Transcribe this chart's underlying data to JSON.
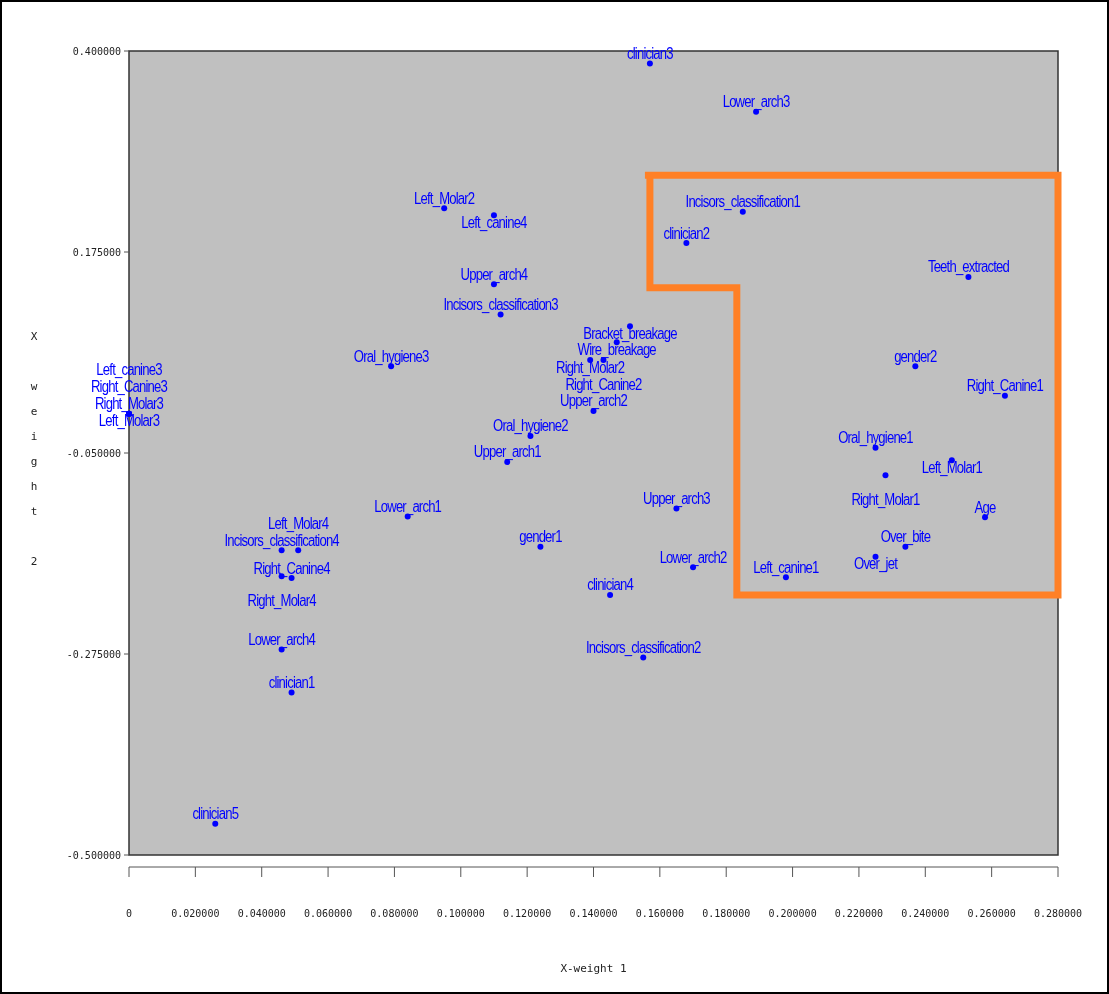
{
  "chart_data": {
    "type": "scatter",
    "xlabel": "X-weight 1",
    "ylabel": "X weight 2",
    "marker": "circle",
    "grid": false,
    "xlim": [
      0,
      0.28
    ],
    "ylim": [
      -0.5,
      0.4
    ],
    "xticks": [
      0,
      {
        "value": 0.02,
        "label": "0.020000"
      },
      {
        "value": 0.04,
        "label": "0.040000"
      },
      {
        "value": 0.06,
        "label": "0.060000"
      },
      {
        "value": 0.08,
        "label": "0.080000"
      },
      {
        "value": 0.1,
        "label": "0.100000"
      },
      {
        "value": 0.12,
        "label": "0.120000"
      },
      {
        "value": 0.14,
        "label": "0.140000"
      },
      {
        "value": 0.16,
        "label": "0.160000"
      },
      {
        "value": 0.18,
        "label": "0.180000"
      },
      {
        "value": 0.2,
        "label": "0.200000"
      },
      {
        "value": 0.22,
        "label": "0.220000"
      },
      {
        "value": 0.24,
        "label": "0.240000"
      },
      {
        "value": 0.26,
        "label": "0.260000"
      },
      {
        "value": 0.28,
        "label": "0.280000"
      }
    ],
    "yticks": [
      {
        "value": -0.5,
        "label": "-0.500000"
      },
      {
        "value": -0.275,
        "label": "-0.275000"
      },
      {
        "value": -0.05,
        "label": "-0.050000"
      },
      {
        "value": 0.175,
        "label": "0.175000"
      },
      {
        "value": 0.4,
        "label": "0.400000"
      }
    ],
    "series": [
      {
        "color": "#0000ff",
        "x": [
          0.157,
          0.189,
          0.185,
          0.168,
          0.253,
          0.095,
          0.11,
          0.11,
          0.112,
          0.151,
          0.147,
          0.139,
          0.143,
          0.079,
          0.237,
          0.264,
          0,
          0,
          0,
          0,
          0.14,
          0.121,
          0.114,
          0.225,
          0.248,
          0.228,
          0.165,
          0.084,
          0.258,
          0.046,
          0.051,
          0.124,
          0.234,
          0.225,
          0.049,
          0.046,
          0.17,
          0.198,
          0.145,
          0.155,
          0.046,
          0.049,
          0.026
        ],
        "values": [
          0.386,
          0.332,
          0.22,
          0.185,
          0.147,
          0.224,
          0.216,
          0.139,
          0.105,
          0.092,
          0.074,
          0.054,
          0.054,
          0.047,
          0.047,
          0.014,
          -0.006,
          -0.006,
          -0.006,
          -0.006,
          -0.003,
          -0.031,
          -0.06,
          -0.044,
          -0.058,
          -0.075,
          -0.112,
          -0.121,
          -0.122,
          -0.159,
          -0.159,
          -0.155,
          -0.155,
          -0.166,
          -0.19,
          -0.188,
          -0.178,
          -0.189,
          -0.209,
          -0.279,
          -0.27,
          -0.318,
          -0.465
        ],
        "value_labels": [
          "clinician3",
          "Lower_arch3",
          "Incisors_classification1",
          "clinician2",
          "Teeth_extracted",
          "Left_Molar2",
          "Left_canine4",
          "Upper_arch4",
          "Incisors_classification3",
          "Bracket_breakage",
          "Wire_breakage",
          "Right_Molar2",
          "Right_Canine2",
          "Oral_hygiene3",
          "gender2",
          "Right_Canine1",
          "Right_Molar3",
          "Right_Canine3",
          "Left_Molar3",
          "Left_canine3",
          "Upper_arch2",
          "Oral_hygiene2",
          "Upper_arch1",
          "Oral_hygiene1",
          "Left_Molar1",
          "Right_Molar1",
          "Upper_arch3",
          "Lower_arch1",
          "Age",
          "Incisors_classification4",
          "Left_Molar4",
          "gender1",
          "Over_bite",
          "Over_jet",
          "Right_Canine4",
          "Right_Molar4",
          "Lower_arch2",
          "Left_canine1",
          "clinician4",
          "Incisors_classification2",
          "Lower_arch4",
          "clinician1",
          "clinician5"
        ]
      }
    ]
  }
}
